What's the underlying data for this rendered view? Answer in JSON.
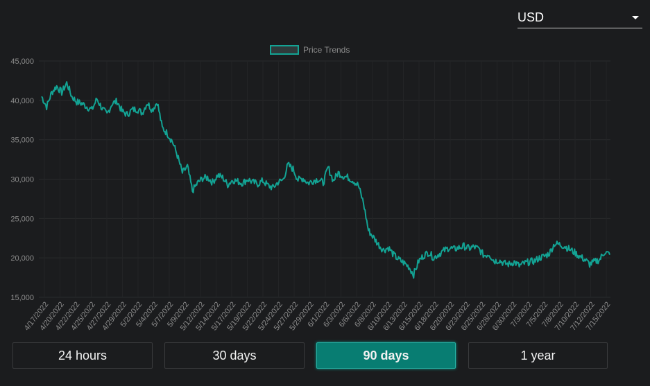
{
  "currency": {
    "selected": "USD"
  },
  "periods": [
    {
      "label": "24 hours",
      "active": false
    },
    {
      "label": "30 days",
      "active": false
    },
    {
      "label": "90 days",
      "active": true
    },
    {
      "label": "1 year",
      "active": false
    }
  ],
  "colors": {
    "line": "#13a394",
    "background": "#1b1c1e",
    "active": "#087d72"
  },
  "chart_data": {
    "type": "line",
    "legend": {
      "label": "Price Trends",
      "position": "top-center"
    },
    "ylim": [
      15000,
      45000
    ],
    "yticks": [
      "45,000",
      "40,000",
      "35,000",
      "30,000",
      "25,000",
      "20,000",
      "15,000"
    ],
    "yticks_values": [
      45000,
      40000,
      35000,
      30000,
      25000,
      20000,
      15000
    ],
    "xticks": [
      "4/17/2022",
      "4/20/2022",
      "4/22/2022",
      "4/25/2022",
      "4/27/2022",
      "4/29/2022",
      "5/2/2022",
      "5/4/2022",
      "5/7/2022",
      "5/9/2022",
      "5/12/2022",
      "5/14/2022",
      "5/17/2022",
      "5/19/2022",
      "5/22/2022",
      "5/24/2022",
      "5/27/2022",
      "5/29/2022",
      "6/1/2022",
      "6/3/2022",
      "6/6/2022",
      "6/8/2022",
      "6/10/2022",
      "6/13/2022",
      "6/15/2022",
      "6/18/2022",
      "6/20/2022",
      "6/23/2022",
      "6/25/2022",
      "6/28/2022",
      "6/30/2022",
      "7/3/2022",
      "7/5/2022",
      "7/8/2022",
      "7/10/2022",
      "7/12/2022",
      "7/15/2022"
    ],
    "grid": true,
    "series": [
      {
        "name": "Price Trends",
        "values": [
          40500,
          39200,
          41000,
          41800,
          41000,
          42200,
          40500,
          39800,
          39600,
          39200,
          38800,
          40200,
          39000,
          38200,
          39600,
          39900,
          38600,
          38200,
          38800,
          38900,
          38400,
          39700,
          38800,
          39800,
          36500,
          35800,
          34800,
          33000,
          30800,
          31600,
          28500,
          29500,
          30100,
          30200,
          29600,
          30500,
          30200,
          29300,
          29900,
          29700,
          29500,
          30000,
          29600,
          29400,
          29800,
          29200,
          28900,
          29600,
          29900,
          31800,
          31300,
          29900,
          30100,
          29500,
          29800,
          30000,
          29500,
          31500,
          29800,
          30800,
          30400,
          30200,
          29800,
          29200,
          27000,
          23500,
          22600,
          21700,
          21000,
          21300,
          20400,
          19800,
          19400,
          18900,
          17900,
          19600,
          20300,
          20700,
          20000,
          20500,
          20900,
          21300,
          21100,
          21300,
          21500,
          21200,
          21400,
          21100,
          20300,
          20500,
          19600,
          19700,
          19300,
          19200,
          19500,
          19000,
          19300,
          19500,
          19600,
          20000,
          20200,
          20600,
          21800,
          21700,
          21500,
          21100,
          20700,
          20200,
          19800,
          19200,
          19500,
          19800,
          20800,
          20400
        ]
      }
    ]
  }
}
